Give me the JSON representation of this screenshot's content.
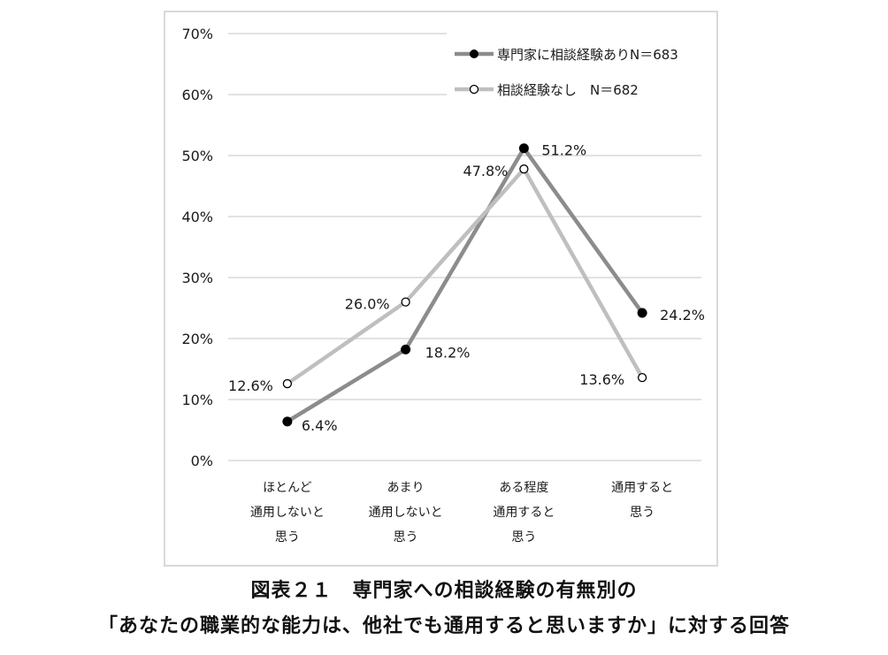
{
  "chart_data": {
    "type": "line",
    "title": "図表２１　専門家への相談経験の有無別の「あなたの職業的な能力は、他社でも通用すると思いますか」に対する回答",
    "categories": [
      [
        "ほとんど",
        "通用しないと",
        "思う"
      ],
      [
        "あまり",
        "通用しないと",
        "思う"
      ],
      [
        "ある程度",
        "通用すると",
        "思う"
      ],
      [
        "通用すると",
        "思う"
      ]
    ],
    "series": [
      {
        "name": "専門家に相談経験ありN＝683",
        "values": [
          6.4,
          18.2,
          51.2,
          24.2
        ],
        "labels": [
          "6.4%",
          "18.2%",
          "51.2%",
          "24.2%"
        ],
        "color": "#8c8c8c",
        "marker": "filled"
      },
      {
        "name": "相談経験なし　N＝682",
        "values": [
          12.6,
          26.0,
          47.8,
          13.6
        ],
        "labels": [
          "12.6%",
          "26.0%",
          "47.8%",
          "13.6%"
        ],
        "color": "#bfbfbf",
        "marker": "hollow"
      }
    ],
    "yticks": [
      "0%",
      "10%",
      "20%",
      "30%",
      "40%",
      "50%",
      "60%",
      "70%"
    ],
    "ylim": [
      0,
      70
    ],
    "xlabel": "",
    "ylabel": "",
    "grid": true,
    "legend_position": "top-right"
  },
  "caption": {
    "line1": "図表２１　専門家への相談経験の有無別の",
    "line2": "「あなたの職業的な能力は、他社でも通用すると思いますか」に対する回答"
  }
}
